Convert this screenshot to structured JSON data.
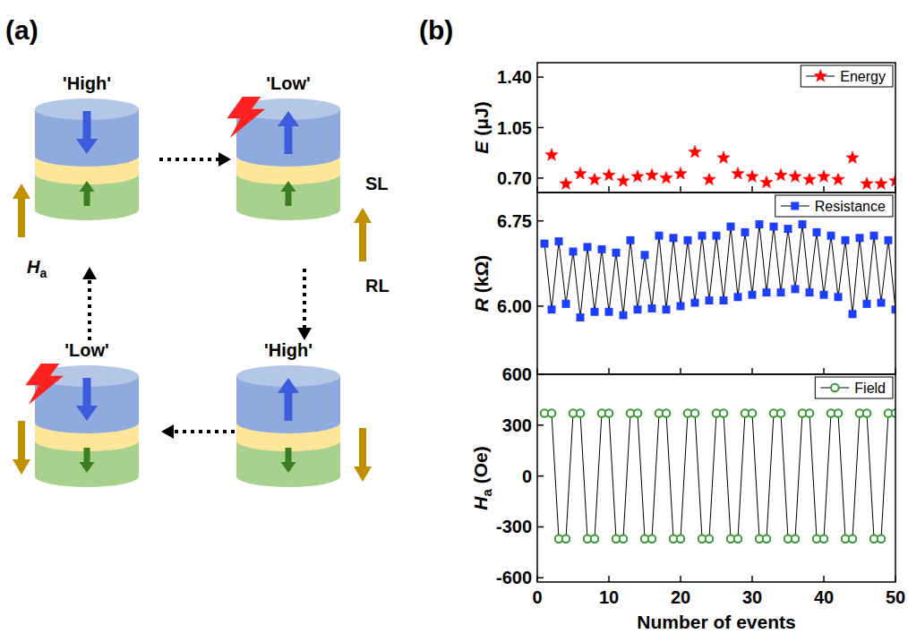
{
  "panel_a": {
    "letter": "(a)",
    "states": [
      {
        "label": "'High'"
      },
      {
        "label": "'Low'"
      },
      {
        "label": "'High'"
      },
      {
        "label": "'Low'"
      }
    ],
    "free_layer_label": "SL",
    "reference_layer_label": "RL",
    "field_symbol": "H",
    "field_subscript": "a"
  },
  "panel_b": {
    "letter": "(b)"
  },
  "chart_data": [
    {
      "type": "scatter",
      "ylabel": "E (μJ)",
      "x": [
        2,
        4,
        6,
        8,
        10,
        12,
        14,
        16,
        18,
        20,
        22,
        24,
        26,
        28,
        30,
        32,
        34,
        36,
        38,
        40,
        42,
        44,
        46,
        48,
        50
      ],
      "series": [
        {
          "name": "Energy",
          "color": "#ff0000",
          "marker": "star",
          "values": [
            0.86,
            0.66,
            0.73,
            0.69,
            0.72,
            0.68,
            0.71,
            0.72,
            0.7,
            0.73,
            0.88,
            0.69,
            0.84,
            0.73,
            0.71,
            0.67,
            0.72,
            0.71,
            0.69,
            0.71,
            0.69,
            0.84,
            0.66,
            0.66,
            0.68
          ]
        }
      ],
      "xlim": [
        0,
        50
      ],
      "xticks": [
        0,
        10,
        20,
        30,
        40,
        50
      ],
      "ylim": [
        0.6,
        1.5
      ],
      "yticks": [
        {
          "value": 0.7,
          "label": "0.70"
        },
        1.05,
        {
          "value": 1.4,
          "label": "1.40"
        }
      ],
      "legend": "upper right",
      "tick_labels": "y"
    },
    {
      "type": "line",
      "ylabel": "R (kΩ)",
      "x": [
        1,
        2,
        3,
        4,
        5,
        6,
        7,
        8,
        9,
        10,
        11,
        12,
        13,
        14,
        15,
        16,
        17,
        18,
        19,
        20,
        21,
        22,
        23,
        24,
        25,
        26,
        27,
        28,
        29,
        30,
        31,
        32,
        33,
        34,
        35,
        36,
        37,
        38,
        39,
        40,
        41,
        42,
        43,
        44,
        45,
        46,
        47,
        48,
        49,
        50
      ],
      "series": [
        {
          "name": "Resistance",
          "color": "#1f3fff",
          "marker": "square",
          "values": [
            6.55,
            5.97,
            6.57,
            6.02,
            6.48,
            5.9,
            6.52,
            5.95,
            6.5,
            5.95,
            6.47,
            5.92,
            6.58,
            5.97,
            6.45,
            5.98,
            6.62,
            5.97,
            6.6,
            6.0,
            6.58,
            6.03,
            6.62,
            6.05,
            6.62,
            6.05,
            6.7,
            6.08,
            6.65,
            6.1,
            6.72,
            6.12,
            6.7,
            6.12,
            6.68,
            6.15,
            6.72,
            6.12,
            6.65,
            6.1,
            6.62,
            6.08,
            6.58,
            5.93,
            6.6,
            6.02,
            6.62,
            6.03,
            6.58,
            5.97
          ]
        }
      ],
      "xlim": [
        0,
        50
      ],
      "xticks": [
        0,
        10,
        20,
        30,
        40,
        50
      ],
      "ylim": [
        5.4,
        7.0
      ],
      "yticks": [
        {
          "value": 6.0,
          "label": "6.00"
        },
        6.75
      ],
      "legend": "upper right",
      "tick_labels": "y"
    },
    {
      "type": "line",
      "ylabel": "Ha (Oe)",
      "xlabel": "Number of events",
      "x": [
        1,
        2,
        3,
        4,
        5,
        6,
        7,
        8,
        9,
        10,
        11,
        12,
        13,
        14,
        15,
        16,
        17,
        18,
        19,
        20,
        21,
        22,
        23,
        24,
        25,
        26,
        27,
        28,
        29,
        30,
        31,
        32,
        33,
        34,
        35,
        36,
        37,
        38,
        39,
        40,
        41,
        42,
        43,
        44,
        45,
        46,
        47,
        48,
        49,
        50
      ],
      "series": [
        {
          "name": "Field",
          "color": "#339933",
          "marker": "circle",
          "values": [
            370,
            370,
            -370,
            -370,
            370,
            370,
            -370,
            -370,
            370,
            370,
            -370,
            -370,
            370,
            370,
            -370,
            -370,
            370,
            370,
            -370,
            -370,
            370,
            370,
            -370,
            -370,
            370,
            370,
            -370,
            -370,
            370,
            370,
            -370,
            -370,
            370,
            370,
            -370,
            -370,
            370,
            370,
            -370,
            -370,
            370,
            370,
            -370,
            -370,
            370,
            370,
            -370,
            -370,
            370,
            370
          ]
        }
      ],
      "xlim": [
        0,
        50
      ],
      "xticks": [
        0,
        10,
        20,
        30,
        40,
        50
      ],
      "ylim": [
        -625,
        600
      ],
      "yticks": [
        -600,
        -300,
        0,
        300,
        600
      ],
      "legend": "upper right"
    }
  ]
}
